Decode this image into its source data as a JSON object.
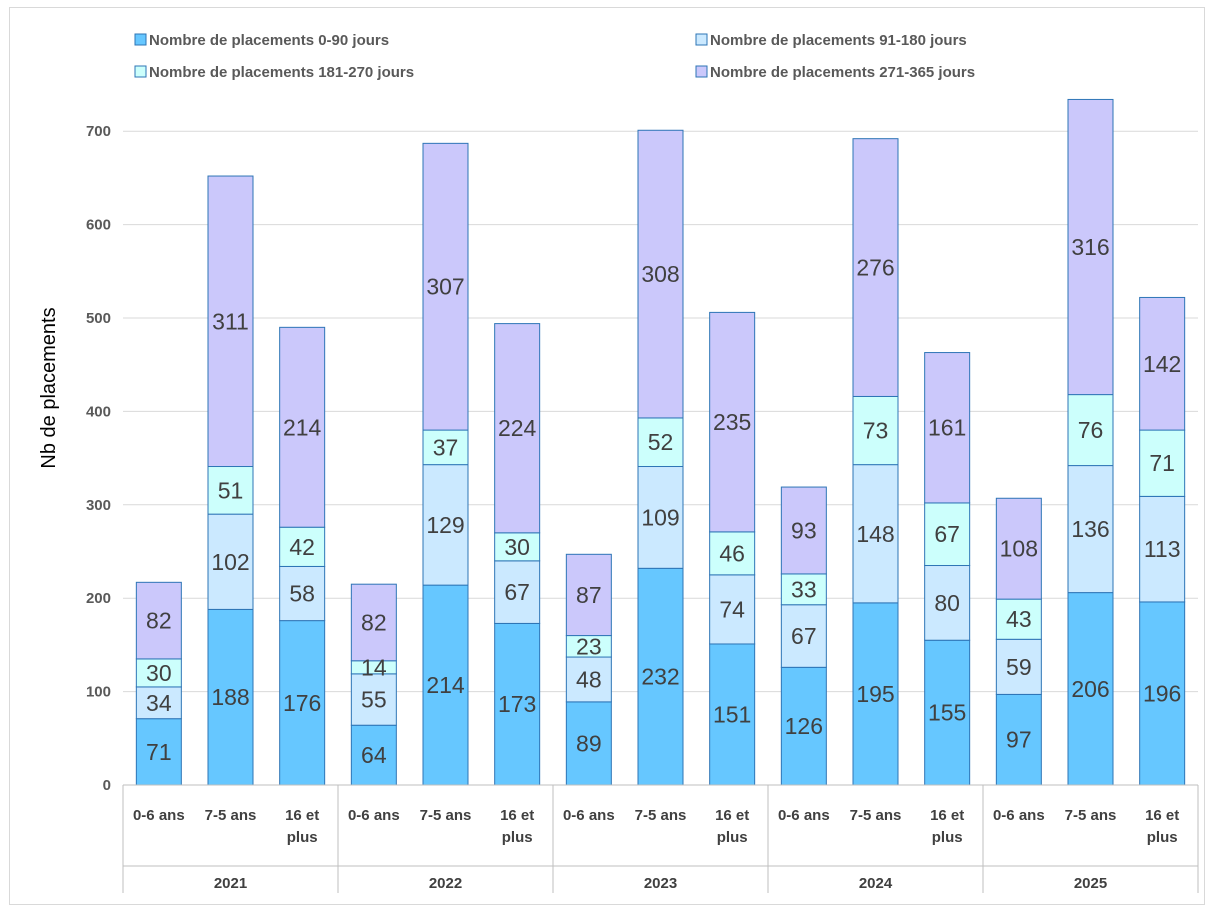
{
  "chart_data": {
    "type": "bar",
    "stacked": true,
    "ylabel": "Nb de placements",
    "ylim": [
      0,
      700
    ],
    "yticks": [
      0,
      100,
      200,
      300,
      400,
      500,
      600,
      700
    ],
    "grid": true,
    "legend_position": "top",
    "groups": [
      {
        "label": "2021",
        "categories": [
          "0-6 ans",
          "7-5 ans",
          "16 et plus"
        ]
      },
      {
        "label": "2022",
        "categories": [
          "0-6 ans",
          "7-5 ans",
          "16 et plus"
        ]
      },
      {
        "label": "2023",
        "categories": [
          "0-6 ans",
          "7-5 ans",
          "16 et plus"
        ]
      },
      {
        "label": "2024",
        "categories": [
          "0-6 ans",
          "7-5 ans",
          "16 et plus"
        ]
      },
      {
        "label": "2025",
        "categories": [
          "0-6 ans",
          "7-5 ans",
          "16 et plus"
        ]
      }
    ],
    "series": [
      {
        "name": "Nombre de placements 0-90 jours",
        "color": "#66c7ff",
        "values": [
          71,
          188,
          176,
          64,
          214,
          173,
          89,
          232,
          151,
          126,
          195,
          155,
          97,
          206,
          196
        ]
      },
      {
        "name": "Nombre de placements 91-180 jours",
        "color": "#cbe9ff",
        "values": [
          34,
          102,
          58,
          55,
          129,
          67,
          48,
          109,
          74,
          67,
          148,
          80,
          59,
          136,
          113
        ]
      },
      {
        "name": "Nombre de placements 181-270 jours",
        "color": "#ccfffc",
        "values": [
          30,
          51,
          42,
          14,
          37,
          30,
          23,
          52,
          46,
          33,
          73,
          67,
          43,
          76,
          71
        ]
      },
      {
        "name": "Nombre de placements 271-365 jours",
        "color": "#cbc8fb",
        "values": [
          82,
          311,
          214,
          82,
          307,
          224,
          87,
          308,
          235,
          93,
          276,
          161,
          108,
          316,
          142
        ]
      }
    ],
    "category_label_lines": {
      "0-6 ans": [
        "0-6 ans"
      ],
      "7-5 ans": [
        "7-5 ans"
      ],
      "16 et plus": [
        "16 et",
        "plus"
      ]
    }
  }
}
